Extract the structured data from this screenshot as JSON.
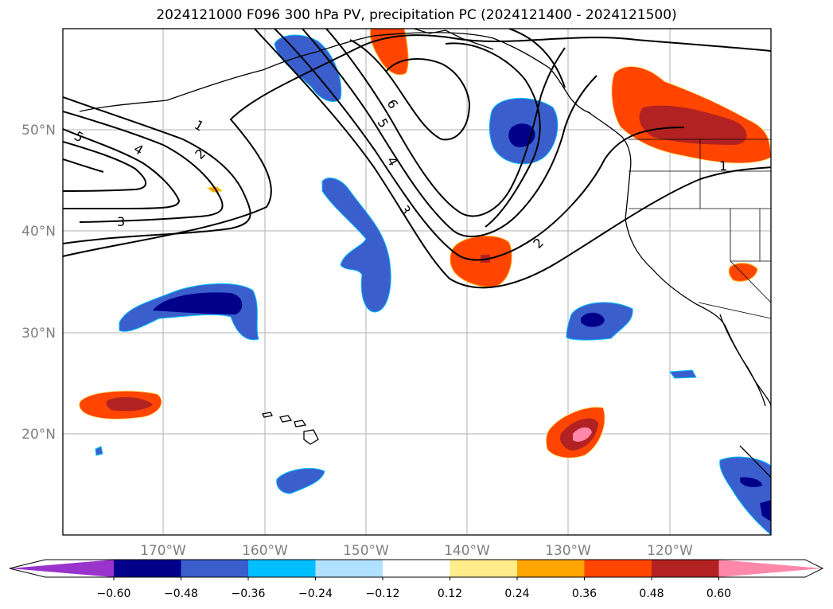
{
  "title": "2024121000 F096 300 hPa PV, precipitation PC (2024121400 - 2024121500)",
  "lat_labels": [
    "50°N",
    "40°N",
    "30°N",
    "20°N"
  ],
  "lon_labels": [
    "170°W",
    "160°W",
    "150°W",
    "140°W",
    "130°W",
    "120°W"
  ],
  "pv_contour_labels": [
    "1",
    "2",
    "3",
    "4",
    "5",
    "6",
    "2",
    "3",
    "4",
    "5",
    "1"
  ],
  "colorbar": {
    "tick_labels": [
      "−0.60",
      "−0.48",
      "−0.36",
      "−0.24",
      "−0.12",
      "0.12",
      "0.24",
      "0.36",
      "0.48",
      "0.60"
    ],
    "colors": [
      "#9933cc",
      "#00008b",
      "#3a5fcd",
      "#00bfff",
      "#b0e2ff",
      "#ffffff",
      "#ffec8b",
      "#ffa500",
      "#ff4500",
      "#b22222",
      "#ff88aa"
    ]
  },
  "colors": {
    "gridline": "#b0b0b0",
    "coast": "#000000",
    "pv_contour": "#000000"
  }
}
